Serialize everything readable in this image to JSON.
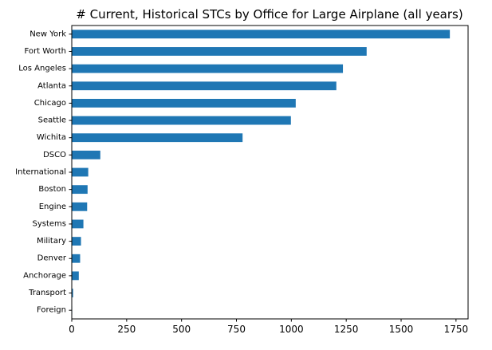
{
  "chart_data": {
    "type": "bar",
    "orientation": "horizontal",
    "title": "# Current, Historical STCs by Office for Large Airplane (all years)",
    "xlabel": "",
    "ylabel": "",
    "categories": [
      "New York",
      "Fort Worth",
      "Los Angeles",
      "Atlanta",
      "Chicago",
      "Seattle",
      "Wichita",
      "DSCO",
      "International",
      "Boston",
      "Engine",
      "Systems",
      "Military",
      "Denver",
      "Anchorage",
      "Transport",
      "Foreign"
    ],
    "values": [
      1722,
      1343,
      1235,
      1205,
      1020,
      998,
      778,
      130,
      75,
      72,
      70,
      53,
      42,
      38,
      32,
      6,
      2
    ],
    "xlim": [
      0,
      1805
    ],
    "xticks": [
      0,
      250,
      500,
      750,
      1000,
      1250,
      1500,
      1750
    ],
    "bar_color": "#1f77b4",
    "grid": false,
    "legend": "none"
  }
}
